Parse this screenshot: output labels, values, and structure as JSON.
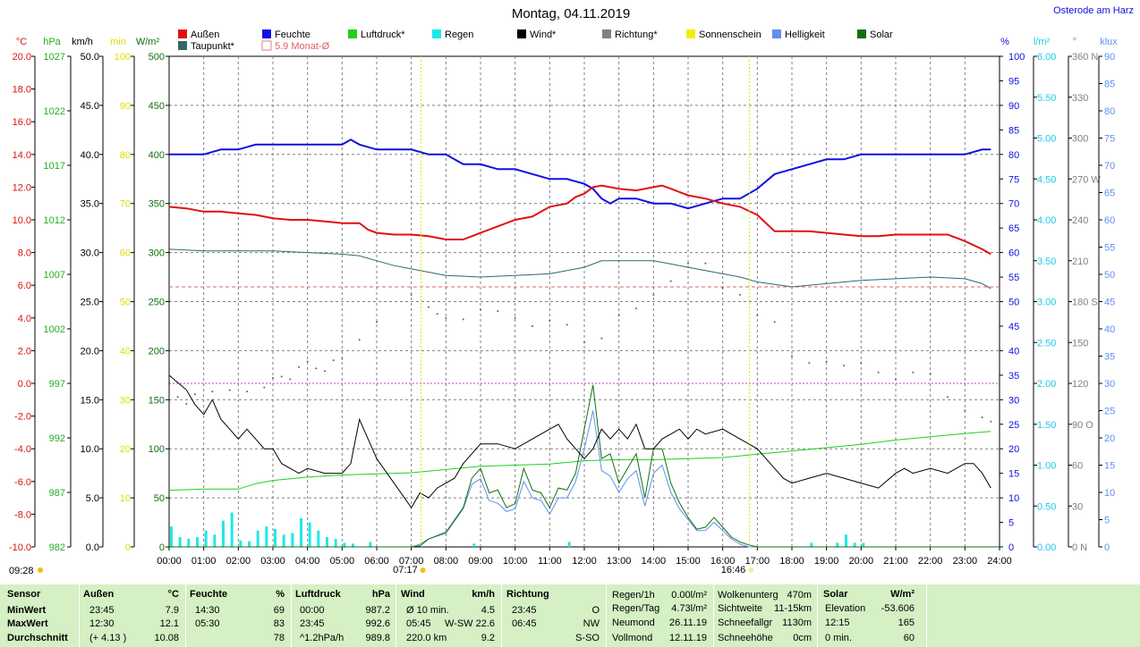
{
  "title": "Montag, 04.11.2019",
  "location": "Osterode am Harz",
  "legend": [
    {
      "label": "Außen",
      "color": "#e01010"
    },
    {
      "label": "Feuchte",
      "color": "#1010e0"
    },
    {
      "label": "Luftdruck*",
      "color": "#20d020"
    },
    {
      "label": "Regen",
      "color": "#20e8e8"
    },
    {
      "label": "Wind*",
      "color": "#000000"
    },
    {
      "label": "Richtung*",
      "color": "#808080"
    },
    {
      "label": "Sonnenschein",
      "color": "#f0f000"
    },
    {
      "label": "Helligkeit",
      "color": "#6090f0"
    },
    {
      "label": "Solar",
      "color": "#107010"
    },
    {
      "label": "Taupunkt*",
      "color": "#306868"
    },
    {
      "label": "5.9 Monat-Ø",
      "color": "#e08080"
    }
  ],
  "axes": {
    "temp": {
      "unit": "°C",
      "color": "#e01010",
      "ticks": [
        "20.0",
        "18.0",
        "16.0",
        "14.0",
        "12.0",
        "10.0",
        "8.0",
        "6.0",
        "4.0",
        "2.0",
        "0.0",
        "-2.0",
        "-4.0",
        "-6.0",
        "-8.0",
        "-10.0"
      ]
    },
    "hpa": {
      "unit": "hPa",
      "color": "#20b020",
      "ticks": [
        "1027",
        "1022",
        "1017",
        "1012",
        "1007",
        "1002",
        "997",
        "992",
        "987",
        "982"
      ]
    },
    "kmh": {
      "unit": "km/h",
      "color": "#000000",
      "ticks": [
        "50.0",
        "45.0",
        "40.0",
        "35.0",
        "30.0",
        "25.0",
        "20.0",
        "15.0",
        "10.0",
        "5.0",
        "0.0"
      ]
    },
    "min": {
      "unit": "min",
      "color": "#e0e000",
      "ticks": [
        "100",
        "90",
        "80",
        "70",
        "60",
        "50",
        "40",
        "30",
        "20",
        "10",
        "0"
      ]
    },
    "wm2": {
      "unit": "W/m²",
      "color": "#107010",
      "ticks": [
        "500",
        "450",
        "400",
        "350",
        "300",
        "250",
        "200",
        "150",
        "100",
        "50",
        "0"
      ]
    },
    "pct": {
      "unit": "%",
      "color": "#1010e0",
      "ticks": [
        "100",
        "95",
        "90",
        "85",
        "80",
        "75",
        "70",
        "65",
        "60",
        "55",
        "50",
        "45",
        "40",
        "35",
        "30",
        "25",
        "20",
        "15",
        "10",
        "5",
        "0"
      ]
    },
    "lm2": {
      "unit": "l/m²",
      "color": "#20c8e8",
      "ticks": [
        "6.00",
        "5.50",
        "5.00",
        "4.50",
        "4.00",
        "3.50",
        "3.00",
        "2.50",
        "2.00",
        "1.50",
        "1.00",
        "0.50",
        "0.00"
      ]
    },
    "deg": {
      "unit": "°",
      "color": "#808080",
      "ticks": [
        "360 N",
        "330",
        "300",
        "270 W",
        "240",
        "210",
        "180 S",
        "150",
        "120",
        "90 O",
        "60",
        "30",
        "0 N"
      ]
    },
    "klux": {
      "unit": "klux",
      "color": "#6090f0",
      "ticks": [
        "90",
        "85",
        "80",
        "75",
        "70",
        "65",
        "60",
        "55",
        "50",
        "45",
        "40",
        "35",
        "30",
        "25",
        "20",
        "15",
        "10",
        "5",
        "0"
      ]
    },
    "time": {
      "ticks": [
        "00:00",
        "01:00",
        "02:00",
        "03:00",
        "04:00",
        "05:00",
        "06:00",
        "07:00",
        "08:00",
        "09:00",
        "10:00",
        "11:00",
        "12:00",
        "13:00",
        "14:00",
        "15:00",
        "16:00",
        "17:00",
        "18:00",
        "19:00",
        "20:00",
        "21:00",
        "22:00",
        "23:00",
        "24:00"
      ]
    }
  },
  "markers": {
    "sunrise": "07:17",
    "sunset": "16:46",
    "current": "09:28"
  },
  "chart_data": {
    "type": "line",
    "title": "Montag, 04.11.2019",
    "xlim": [
      0,
      24
    ],
    "series": [
      {
        "name": "Außen",
        "unit": "°C",
        "x": [
          0,
          0.5,
          1,
          1.5,
          2,
          2.5,
          3,
          3.5,
          4,
          4.5,
          5,
          5.5,
          5.75,
          6,
          6.5,
          7,
          7.5,
          8,
          8.25,
          8.5,
          9,
          9.5,
          10,
          10.5,
          11,
          11.5,
          11.75,
          12,
          12.25,
          12.5,
          13,
          13.5,
          14,
          14.25,
          14.5,
          15,
          15.5,
          16,
          16.5,
          17,
          17.5,
          18,
          18.5,
          19,
          19.5,
          20,
          20.5,
          21,
          21.5,
          22,
          22.5,
          23,
          23.5,
          23.75
        ],
        "values": [
          10.8,
          10.7,
          10.5,
          10.5,
          10.4,
          10.3,
          10.1,
          10.0,
          10.0,
          9.9,
          9.8,
          9.8,
          9.4,
          9.2,
          9.1,
          9.1,
          9.0,
          8.8,
          8.8,
          8.8,
          9.2,
          9.6,
          10.0,
          10.2,
          10.8,
          11.0,
          11.4,
          11.6,
          12.0,
          12.1,
          11.9,
          11.8,
          12.0,
          12.1,
          11.9,
          11.5,
          11.3,
          11.0,
          10.8,
          10.3,
          9.3,
          9.3,
          9.3,
          9.2,
          9.1,
          9.0,
          9.0,
          9.1,
          9.1,
          9.1,
          9.1,
          8.7,
          8.2,
          7.9
        ]
      },
      {
        "name": "Feuchte",
        "unit": "%",
        "x": [
          0,
          0.5,
          1,
          1.5,
          2,
          2.5,
          3,
          4,
          5,
          5.25,
          5.5,
          6,
          7,
          7.5,
          8,
          8.5,
          9,
          9.5,
          10,
          10.5,
          11,
          11.5,
          12,
          12.25,
          12.5,
          12.75,
          13,
          13.5,
          14,
          14.5,
          15,
          15.5,
          16,
          16.5,
          17,
          17.5,
          18,
          18.5,
          19,
          19.5,
          20,
          21,
          22,
          23,
          23.5,
          23.75
        ],
        "values": [
          80,
          80,
          80,
          81,
          81,
          82,
          82,
          82,
          82,
          83,
          82,
          81,
          81,
          80,
          80,
          78,
          78,
          77,
          77,
          76,
          75,
          75,
          74,
          73,
          71,
          70,
          71,
          71,
          70,
          70,
          69,
          70,
          71,
          71,
          73,
          76,
          77,
          78,
          79,
          79,
          80,
          80,
          80,
          80,
          81,
          81
        ]
      },
      {
        "name": "Taupunkt*",
        "unit": "°C",
        "x": [
          0,
          1,
          2,
          3,
          4,
          5,
          5.5,
          6,
          6.5,
          7,
          8,
          9,
          10,
          11,
          11.5,
          12,
          12.5,
          13,
          14,
          14.5,
          15,
          15.5,
          16,
          16.5,
          17,
          18,
          19,
          20,
          21,
          22,
          23,
          23.5,
          23.75
        ],
        "values": [
          8.2,
          8.1,
          8.1,
          8.1,
          8.0,
          7.9,
          7.8,
          7.5,
          7.2,
          7.0,
          6.6,
          6.5,
          6.6,
          6.7,
          6.9,
          7.1,
          7.5,
          7.5,
          7.5,
          7.3,
          7.1,
          6.9,
          6.7,
          6.5,
          6.2,
          5.9,
          6.1,
          6.3,
          6.4,
          6.5,
          6.4,
          6.1,
          5.8
        ]
      },
      {
        "name": "Luftdruck*",
        "unit": "hPa",
        "x": [
          0,
          1,
          2,
          2.5,
          3,
          4,
          5,
          6,
          7,
          8,
          9,
          10,
          11,
          12,
          13,
          14,
          15,
          16,
          17,
          18,
          19,
          20,
          21,
          22,
          23,
          23.75
        ],
        "values": [
          987.2,
          987.3,
          987.3,
          987.8,
          988.1,
          988.4,
          988.6,
          988.7,
          988.8,
          989.1,
          989.4,
          989.5,
          989.6,
          989.9,
          990.0,
          990.0,
          990.1,
          990.2,
          990.5,
          990.8,
          991.1,
          991.4,
          991.8,
          992.1,
          992.4,
          992.6
        ]
      },
      {
        "name": "Wind*",
        "unit": "km/h",
        "x": [
          0,
          0.5,
          0.75,
          1,
          1.25,
          1.5,
          1.75,
          2,
          2.25,
          2.5,
          2.75,
          3,
          3.25,
          3.5,
          3.75,
          4,
          4.5,
          5,
          5.25,
          5.5,
          5.75,
          6,
          6.5,
          7,
          7.25,
          7.5,
          7.75,
          8,
          8.25,
          8.5,
          9,
          9.5,
          10,
          10.5,
          11,
          11.25,
          11.5,
          11.75,
          12,
          12.25,
          12.5,
          12.75,
          13,
          13.25,
          13.5,
          13.75,
          14,
          14.25,
          14.5,
          14.75,
          15,
          15.25,
          15.5,
          16,
          16.5,
          17,
          17.25,
          17.5,
          17.75,
          18,
          18.5,
          19,
          19.5,
          20,
          20.5,
          21,
          21.25,
          21.5,
          22,
          22.5,
          23,
          23.25,
          23.5,
          23.75
        ],
        "values": [
          17.5,
          16.0,
          14.5,
          13.5,
          15.0,
          13.0,
          12.0,
          11.0,
          12.0,
          11.0,
          10.0,
          10.0,
          8.5,
          8.0,
          7.5,
          8.0,
          7.5,
          7.5,
          8.5,
          13.0,
          11.0,
          9.0,
          6.5,
          4.0,
          5.5,
          5.0,
          6.0,
          6.5,
          7.0,
          8.5,
          10.5,
          10.5,
          10.0,
          11.0,
          12.0,
          12.5,
          11.0,
          10.0,
          9.0,
          10.0,
          12.0,
          11.0,
          12.0,
          11.0,
          12.5,
          10.0,
          10.0,
          11.0,
          11.5,
          12.0,
          11.0,
          12.0,
          11.5,
          12.0,
          11.0,
          10.0,
          9.0,
          8.0,
          7.0,
          6.5,
          7.0,
          7.5,
          7.0,
          6.5,
          6.0,
          7.5,
          8.0,
          7.5,
          8.0,
          7.5,
          8.5,
          8.5,
          7.5,
          6.0
        ]
      },
      {
        "name": "Richtung*",
        "unit": "°",
        "x": [
          0.25,
          0.5,
          0.75,
          1.25,
          1.75,
          2.25,
          2.75,
          3,
          3.25,
          3.5,
          3.75,
          4,
          4.25,
          4.5,
          4.75,
          5,
          5.5,
          6,
          7,
          7.5,
          7.75,
          8,
          8.5,
          9,
          9.5,
          10,
          10.5,
          11,
          11.5,
          12,
          12.5,
          13,
          13.5,
          14,
          14.5,
          15,
          15.5,
          16,
          16.5,
          17,
          17.5,
          18,
          18.5,
          19,
          19.5,
          20,
          20.5,
          21,
          21.5,
          22,
          22.5,
          23,
          23.5,
          23.75
        ],
        "values": [
          110,
          105,
          112,
          114,
          115,
          114,
          117,
          124,
          125,
          123,
          132,
          136,
          131,
          129,
          137,
          138,
          152,
          165,
          185,
          176,
          171,
          168,
          167,
          174,
          173,
          168,
          162,
          166,
          163,
          150,
          153,
          170,
          175,
          185,
          195,
          208,
          208,
          190,
          185,
          170,
          165,
          140,
          135,
          136,
          133,
          135,
          128,
          123,
          128,
          127,
          110,
          100,
          95,
          92
        ]
      },
      {
        "name": "Solar",
        "unit": "W/m²",
        "x": [
          0,
          7,
          7.25,
          7.5,
          8,
          8.5,
          8.75,
          9,
          9.25,
          9.5,
          9.75,
          10,
          10.25,
          10.5,
          10.75,
          11,
          11.25,
          11.5,
          11.75,
          12,
          12.25,
          12.5,
          12.75,
          13,
          13.25,
          13.5,
          13.75,
          14,
          14.25,
          14.5,
          14.75,
          15,
          15.25,
          15.5,
          15.75,
          16,
          16.25,
          16.5,
          16.75,
          17,
          24
        ],
        "values": [
          0,
          0,
          1,
          8,
          15,
          40,
          70,
          80,
          55,
          58,
          40,
          44,
          80,
          58,
          55,
          40,
          60,
          58,
          75,
          120,
          165,
          90,
          95,
          65,
          80,
          95,
          50,
          100,
          100,
          65,
          45,
          30,
          18,
          20,
          30,
          20,
          10,
          5,
          2,
          0,
          0
        ]
      },
      {
        "name": "Helligkeit",
        "unit": "klux",
        "x": [
          0,
          7,
          7.25,
          7.5,
          8,
          8.5,
          8.75,
          9,
          9.25,
          9.5,
          9.75,
          10,
          10.25,
          10.5,
          10.75,
          11,
          11.25,
          11.5,
          11.75,
          12,
          12.25,
          12.5,
          12.75,
          13,
          13.25,
          13.5,
          13.75,
          14,
          14.25,
          14.5,
          14.75,
          15,
          15.25,
          15.5,
          15.75,
          16,
          16.25,
          16.5,
          16.75,
          17,
          24
        ],
        "values": [
          0,
          0,
          0.5,
          1.5,
          2.5,
          7,
          11.5,
          12.5,
          8.5,
          8,
          6.5,
          7,
          12,
          9,
          8.5,
          6,
          9,
          9,
          12,
          18,
          25,
          14,
          13,
          10,
          12.5,
          14,
          7.5,
          13.5,
          15,
          10,
          7,
          5,
          3,
          3,
          4.5,
          3,
          1.5,
          0.5,
          0,
          0,
          0
        ]
      },
      {
        "name": "Regen",
        "unit": "l/m²",
        "x": [
          0,
          0.25,
          0.5,
          0.75,
          1,
          1.25,
          1.5,
          1.75,
          2,
          2.25,
          2.5,
          2.75,
          3,
          3.25,
          3.5,
          3.75,
          4,
          4.25,
          4.5,
          4.75,
          5,
          5.25,
          5.75,
          11.5,
          8.75,
          18.5,
          19.25,
          19.5,
          19.75,
          20
        ],
        "values": [
          0.25,
          0.12,
          0.1,
          0.12,
          0.2,
          0.15,
          0.32,
          0.42,
          0.08,
          0.07,
          0.2,
          0.25,
          0.22,
          0.15,
          0.17,
          0.35,
          0.3,
          0.2,
          0.12,
          0.1,
          0.05,
          0.04,
          0.06,
          0.06,
          0.04,
          0.05,
          0.05,
          0.15,
          0.05,
          0.05
        ]
      },
      {
        "name": "5.9 Monat-Ø",
        "unit": "°C",
        "x": [
          0,
          24
        ],
        "values": [
          5.9,
          5.9
        ]
      }
    ],
    "ylim_temp": [
      -10,
      20
    ],
    "ylim_pct": [
      0,
      100
    ],
    "ylim_hpa": [
      982,
      1027
    ],
    "ylim_kmh": [
      0,
      50
    ],
    "ylim_wm2": [
      0,
      500
    ],
    "ylim_klux": [
      0,
      90
    ],
    "ylim_deg": [
      0,
      360
    ],
    "ylim_lm2": [
      0,
      6
    ],
    "grid": true
  },
  "footer": {
    "headers": {
      "sensor": "Sensor",
      "aussen": "Außen",
      "aussen_unit": "°C",
      "feuchte": "Feuchte",
      "feuchte_unit": "%",
      "luft": "Luftdruck",
      "luft_unit": "hPa",
      "wind": "Wind",
      "wind_unit": "km/h",
      "richtung": "Richtung",
      "solar": "Solar",
      "solar_unit": "W/m²"
    },
    "rows": [
      {
        "label": "MinWert",
        "a_time": "23:45",
        "a_val": "7.9",
        "f_time": "14:30",
        "f_val": "69",
        "l_time": "00:00",
        "l_val": "987.2",
        "w_label": "Ø 10 min.",
        "w_mid": "",
        "w_val": "4.5",
        "r_time": "23:45",
        "r_val": "O"
      },
      {
        "label": "MaxWert",
        "a_time": "12:30",
        "a_val": "12.1",
        "f_time": "05:30",
        "f_val": "83",
        "l_time": "23:45",
        "l_val": "992.6",
        "w_label": "05:45",
        "w_mid": "W-SW",
        "w_val": "22.6",
        "r_time": "06:45",
        "r_val": "NW"
      },
      {
        "label": "Durchschnitt",
        "a_time": "(+ 4.13 )",
        "a_val": "10.08",
        "f_time": "",
        "f_val": "78",
        "l_time": "^1.2hPa/h",
        "l_val": "989.8",
        "w_label": "220.0 km",
        "w_mid": "",
        "w_val": "9.2",
        "r_time": "",
        "r_val": "S-SO"
      }
    ],
    "rain": [
      {
        "k": "Regen/1h",
        "v": "0.00l/m²"
      },
      {
        "k": "Regen/Tag",
        "v": "4.73l/m²"
      },
      {
        "k": "Neumond",
        "v": "26.11.19"
      },
      {
        "k": "Vollmond",
        "v": "12.11.19"
      }
    ],
    "cloud": [
      {
        "k": "Wolkenunterg",
        "v": "470m"
      },
      {
        "k": "Sichtweite",
        "v": "11-15km"
      },
      {
        "k": "Schneefallgr",
        "v": "1130m"
      },
      {
        "k": "Schneehöhe",
        "v": "0cm"
      }
    ],
    "solar": [
      {
        "k": "Elevation",
        "v": "-53.606"
      },
      {
        "k": "12:15",
        "v": "165"
      },
      {
        "k": "0 min.",
        "v": "60"
      }
    ]
  }
}
